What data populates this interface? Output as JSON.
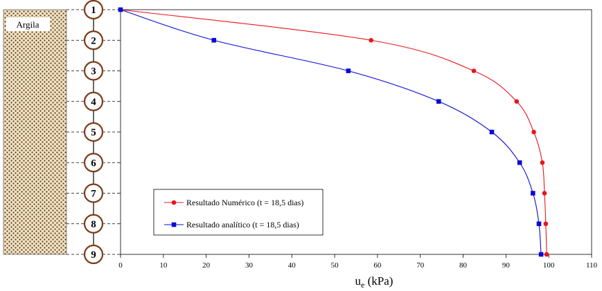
{
  "colors": {
    "numeric": "#e8151b",
    "analytic": "#0a0ad6",
    "node_ring": "#7b3b16",
    "soil_fill": "#efe2c4",
    "soil_dots": "#5e3a16"
  },
  "soil_label": "Argila",
  "nodes": [
    "1",
    "2",
    "3",
    "4",
    "5",
    "6",
    "7",
    "8",
    "9"
  ],
  "chart_data": {
    "type": "line",
    "xlabel_main": "u",
    "xlabel_sub": "e",
    "xlabel_rest": " (kPa)",
    "xlim": [
      0,
      110
    ],
    "xticks": [
      "0",
      "10",
      "20",
      "30",
      "40",
      "50",
      "60",
      "70",
      "80",
      "90",
      "100",
      "110"
    ],
    "y_categories": [
      1,
      2,
      3,
      4,
      5,
      6,
      7,
      8,
      9
    ],
    "grid": false,
    "legend_position": "bottom-left",
    "series": [
      {
        "name": "Resultado Numérico (t = 18,5 dias)",
        "marker": "circle",
        "color": "#e8151b",
        "points": [
          [
            0,
            1
          ],
          [
            58.5,
            2
          ],
          [
            82.5,
            3
          ],
          [
            92.5,
            4
          ],
          [
            96.5,
            5
          ],
          [
            98.5,
            6
          ],
          [
            99.0,
            7
          ],
          [
            99.3,
            8
          ],
          [
            99.5,
            9
          ]
        ]
      },
      {
        "name": "Resultado analítico (t = 18,5 dias)",
        "marker": "square",
        "color": "#0a0ad6",
        "points": [
          [
            0,
            1
          ],
          [
            21.8,
            2
          ],
          [
            53.2,
            3
          ],
          [
            74.3,
            4
          ],
          [
            86.7,
            5
          ],
          [
            93.2,
            6
          ],
          [
            96.3,
            7
          ],
          [
            97.7,
            8
          ],
          [
            98.2,
            9
          ]
        ]
      }
    ]
  }
}
